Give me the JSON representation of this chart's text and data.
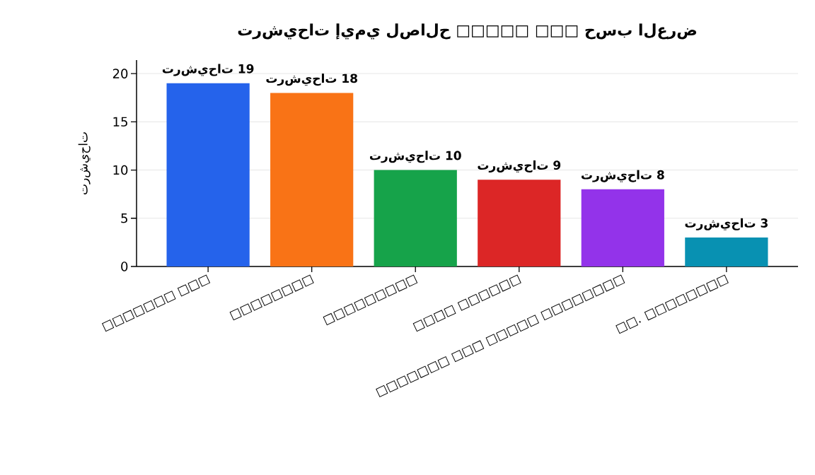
{
  "chart_data": {
    "type": "bar",
    "title": "ترشيحات إيمي لصالح □□□□□ □□□ حسب العرض",
    "ylabel": "ترشيحات",
    "categories": [
      "□□□□□□□ □□□",
      "□□□□□□□□",
      "□□□□□□□□□",
      "□□□□ □□□□□□",
      "□□□□□□□ □□□ □□□□□ □□□□□□□□",
      "□□. □□□□□□□□"
    ],
    "values": [
      19,
      18,
      10,
      9,
      8,
      3
    ],
    "colors": [
      "#2563eb",
      "#f97316",
      "#16a34a",
      "#dc2626",
      "#9333ea",
      "#0891b2"
    ],
    "value_labels": [
      "ترشيحات 19",
      "ترشيحات 18",
      "ترشيحات 10",
      "ترشيحات 9",
      "ترشيحات 8",
      "ترشيحات 3"
    ],
    "ylim": [
      0,
      21.4
    ],
    "yticks": [
      0,
      5,
      10,
      15,
      20
    ],
    "grid": "y"
  }
}
